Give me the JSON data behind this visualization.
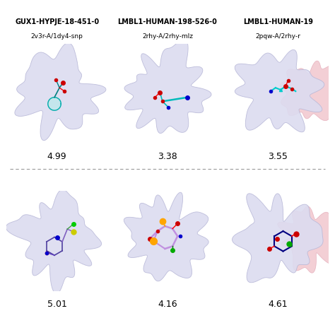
{
  "bg_color": "#ffffff",
  "protein_color": "#dcdcf0",
  "protein_edge_color": "#b8b8d8",
  "pink_blob_color": "#f0c0c8",
  "pink_edge_color": "#e0a0b0",
  "row1_labels_line1": [
    "GUX1-HYPJE-18-451-0",
    "LMBL1-HUMAN-198-526-0",
    "LMBL1-HUMAN-19"
  ],
  "row1_labels_line2": [
    "2v3r-A/1dy4-snp",
    "2rhy-A/2rhy-mlz",
    "2pqw-A/2rhy-r"
  ],
  "row1_scores": [
    "4.99",
    "3.38",
    "3.55"
  ],
  "row2_scores": [
    "5.01",
    "4.16",
    "4.61"
  ],
  "divider_color": "#999999",
  "score_fontsize": 9,
  "label_fontsize": 7,
  "sub_label_fontsize": 6.5
}
